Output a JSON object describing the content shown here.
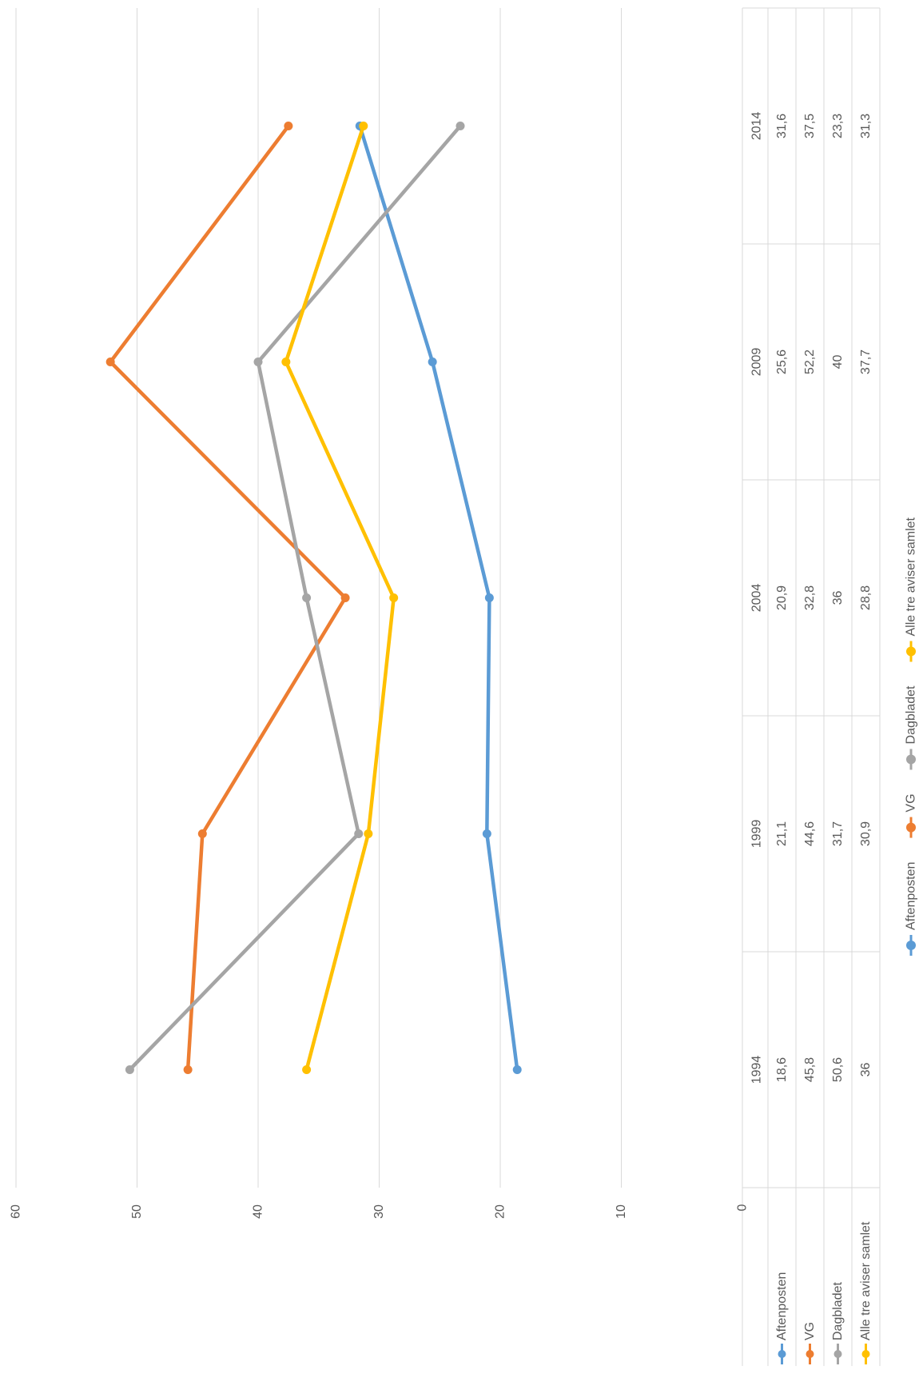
{
  "chart_data": {
    "type": "line",
    "orientation": "rotated-90-clockwise",
    "title": "",
    "xlabel": "",
    "ylabel": "",
    "categories": [
      "1994",
      "1999",
      "2004",
      "2009",
      "2014"
    ],
    "ylim": [
      0,
      60
    ],
    "yticks": [
      "0",
      "10",
      "20",
      "30",
      "40",
      "50",
      "60"
    ],
    "grid": true,
    "data_table": true,
    "legend_position": "bottom",
    "series": [
      {
        "name": "Aftenposten",
        "color": "#5B9BD5",
        "values": [
          18.6,
          21.1,
          20.9,
          25.6,
          31.6
        ],
        "labels": [
          "18,6",
          "21,1",
          "20,9",
          "25,6",
          "31,6"
        ]
      },
      {
        "name": "VG",
        "color": "#ED7D31",
        "values": [
          45.8,
          44.6,
          32.8,
          52.2,
          37.5
        ],
        "labels": [
          "45,8",
          "44,6",
          "32,8",
          "52,2",
          "37,5"
        ]
      },
      {
        "name": "Dagbladet",
        "color": "#A5A5A5",
        "values": [
          50.6,
          31.7,
          36,
          40,
          23.3
        ],
        "labels": [
          "50,6",
          "31,7",
          "36",
          "40",
          "23,3"
        ]
      },
      {
        "name": "Alle tre aviser samlet",
        "color": "#FFC000",
        "values": [
          36,
          30.9,
          28.8,
          37.7,
          31.3
        ],
        "labels": [
          "36",
          "30,9",
          "28,8",
          "37,7",
          "31,3"
        ]
      }
    ]
  }
}
